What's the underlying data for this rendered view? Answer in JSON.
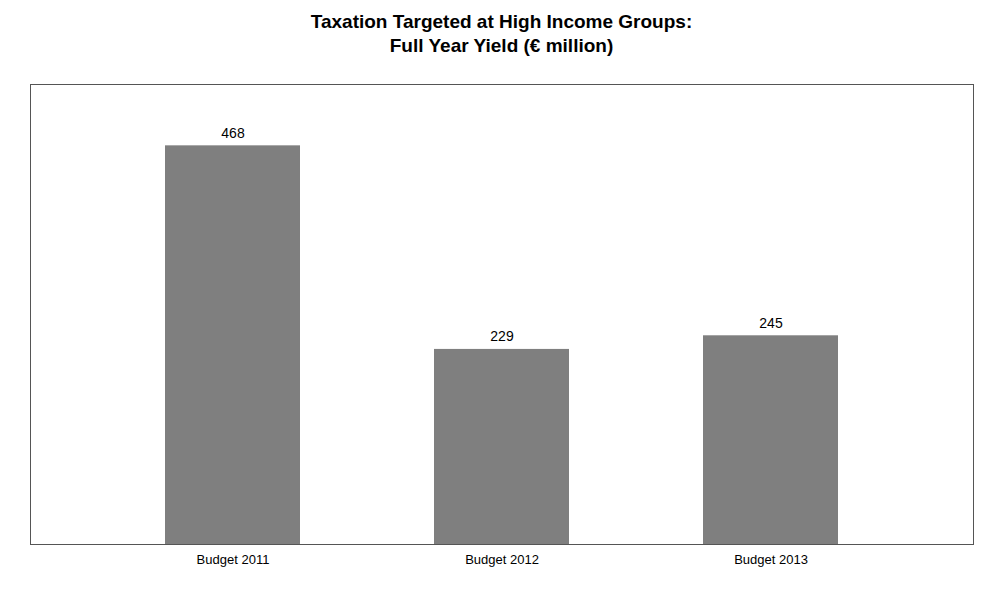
{
  "chart_data": {
    "type": "bar",
    "title": "Taxation Targeted at High Income Groups:",
    "subtitle": "Full Year Yield (€ million)",
    "categories": [
      "Budget 2011",
      "Budget 2012",
      "Budget 2013"
    ],
    "values": [
      468,
      229,
      245
    ],
    "color": "#7f7f7f",
    "ylim": [
      0,
      540
    ],
    "grid": false,
    "data_labels": true,
    "tick_labels": "x"
  }
}
